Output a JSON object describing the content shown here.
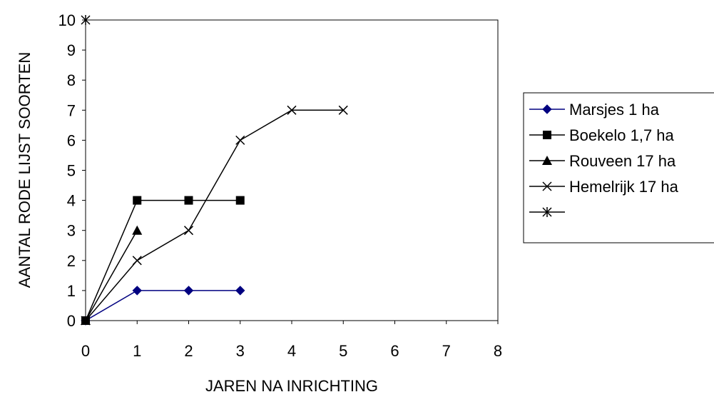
{
  "chart_data": {
    "type": "line",
    "xlabel": "JAREN NA INRICHTING",
    "ylabel": "AANTAL RODE LIJST SOORTEN",
    "xlim": [
      0,
      8
    ],
    "ylim": [
      0,
      10
    ],
    "x_ticks": [
      "0",
      "1",
      "2",
      "3",
      "4",
      "5",
      "6",
      "7",
      "8"
    ],
    "y_ticks": [
      "0",
      "1",
      "2",
      "3",
      "4",
      "5",
      "6",
      "7",
      "8",
      "9",
      "10"
    ],
    "grid": false,
    "legend_position": "right",
    "series": [
      {
        "name": "Marsjes 1 ha",
        "marker": "diamond",
        "color": "#000080",
        "x": [
          0,
          1,
          2,
          3
        ],
        "y": [
          0,
          1,
          1,
          1
        ]
      },
      {
        "name": "Boekelo 1,7 ha",
        "marker": "square",
        "color": "#000000",
        "x": [
          0,
          1,
          2,
          3
        ],
        "y": [
          0,
          4,
          4,
          4
        ]
      },
      {
        "name": "Rouveen 17 ha",
        "marker": "triangle",
        "color": "#000000",
        "x": [
          0,
          1
        ],
        "y": [
          0,
          3
        ]
      },
      {
        "name": "Hemelrijk 17 ha",
        "marker": "x",
        "color": "#000000",
        "x": [
          0,
          1,
          2,
          3,
          4,
          5
        ],
        "y": [
          0,
          2,
          3,
          6,
          7,
          7
        ]
      },
      {
        "name": "",
        "marker": "star",
        "color": "#000000",
        "x": [
          0
        ],
        "y": [
          10
        ]
      }
    ]
  }
}
